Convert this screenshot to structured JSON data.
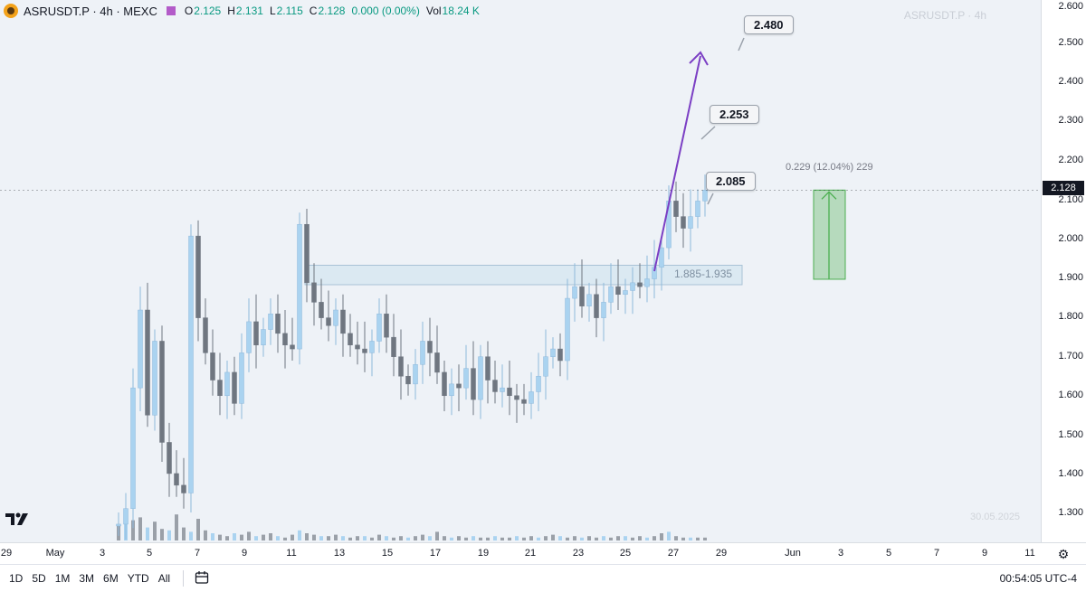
{
  "header": {
    "title": "ASRUSDT.P · 4h · MEXC",
    "ohlc": [
      {
        "key": "O",
        "value": "2.125"
      },
      {
        "key": "H",
        "value": "2.131"
      },
      {
        "key": "L",
        "value": "2.115"
      },
      {
        "key": "C",
        "value": "2.128"
      },
      {
        "key": "",
        "value": "0.000 (0.00%)"
      },
      {
        "key": "Vol",
        "value": "18.24 K"
      }
    ],
    "status_color": "#b35bc9"
  },
  "watermark": "ASRUSDT.P · 4h",
  "watermark_date": "30.05.2025",
  "logo": "TV",
  "current_price": "2.128",
  "price_axis": [
    "2.600",
    "2.500",
    "2.400",
    "2.300",
    "2.200",
    "2.100",
    "2.000",
    "1.900",
    "1.800",
    "1.700",
    "1.600",
    "1.500",
    "1.400",
    "1.300"
  ],
  "time_axis": [
    "29",
    "May",
    "3",
    "5",
    "7",
    "9",
    "11",
    "13",
    "15",
    "17",
    "19",
    "21",
    "23",
    "25",
    "27",
    "29",
    "Jun",
    "3",
    "5",
    "7",
    "9",
    "11"
  ],
  "annotations": {
    "callout_1": "2.480",
    "callout_2": "2.253",
    "callout_3": "2.085",
    "zone_label": "1.885-1.935",
    "measure_label": "0.229 (12.04%) 229"
  },
  "bottom_bar": {
    "ranges": [
      "1D",
      "5D",
      "1M",
      "3M",
      "6M",
      "YTD",
      "All"
    ],
    "calendar_icon": "calendar-icon",
    "clock": "00:54:05 UTC-4"
  },
  "colors": {
    "up": "#8fb9db",
    "up_fill": "#aad3f0",
    "down": "#6f7680",
    "arrow": "#7b3fc4",
    "measure": "#4caf50",
    "zone": "#cfe2ef"
  },
  "chart_data": {
    "type": "candlestick",
    "ylim": [
      1.25,
      2.6
    ],
    "x_start": "2025-05-02 00:00",
    "interval_hours": 4,
    "series": [
      {
        "close": 1.27
      },
      {
        "close": 1.31
      },
      {
        "close": 1.62
      },
      {
        "close": 1.82
      },
      {
        "close": 1.55
      },
      {
        "close": 1.74
      },
      {
        "close": 1.48
      },
      {
        "close": 1.4
      },
      {
        "close": 1.37
      },
      {
        "close": 1.35
      },
      {
        "close": 2.01
      },
      {
        "close": 1.8
      },
      {
        "close": 1.71
      },
      {
        "close": 1.64
      },
      {
        "close": 1.6
      },
      {
        "close": 1.66
      },
      {
        "close": 1.58
      },
      {
        "close": 1.71
      },
      {
        "close": 1.79
      },
      {
        "close": 1.73
      },
      {
        "close": 1.77
      },
      {
        "close": 1.81
      },
      {
        "close": 1.76
      },
      {
        "close": 1.73
      },
      {
        "close": 1.72
      },
      {
        "close": 2.04
      },
      {
        "close": 1.89
      },
      {
        "close": 1.84
      },
      {
        "close": 1.8
      },
      {
        "close": 1.78
      },
      {
        "close": 1.82
      },
      {
        "close": 1.76
      },
      {
        "close": 1.73
      },
      {
        "close": 1.72
      },
      {
        "close": 1.71
      },
      {
        "close": 1.74
      },
      {
        "close": 1.81
      },
      {
        "close": 1.75
      },
      {
        "close": 1.7
      },
      {
        "close": 1.65
      },
      {
        "close": 1.63
      },
      {
        "close": 1.68
      },
      {
        "close": 1.74
      },
      {
        "close": 1.71
      },
      {
        "close": 1.66
      },
      {
        "close": 1.6
      },
      {
        "close": 1.63
      },
      {
        "close": 1.62
      },
      {
        "close": 1.67
      },
      {
        "close": 1.59
      },
      {
        "close": 1.7
      },
      {
        "close": 1.64
      },
      {
        "close": 1.61
      },
      {
        "close": 1.62
      },
      {
        "close": 1.6
      },
      {
        "close": 1.59
      },
      {
        "close": 1.58
      },
      {
        "close": 1.61
      },
      {
        "close": 1.65
      },
      {
        "close": 1.7
      },
      {
        "close": 1.72
      },
      {
        "close": 1.69
      },
      {
        "close": 1.85
      },
      {
        "close": 1.88
      },
      {
        "close": 1.83
      },
      {
        "close": 1.86
      },
      {
        "close": 1.8
      },
      {
        "close": 1.84
      },
      {
        "close": 1.88
      },
      {
        "close": 1.86
      },
      {
        "close": 1.87
      },
      {
        "close": 1.89
      },
      {
        "close": 1.88
      },
      {
        "close": 1.9
      },
      {
        "close": 1.93
      },
      {
        "close": 1.98
      },
      {
        "close": 2.1
      },
      {
        "close": 2.06
      },
      {
        "close": 2.03
      },
      {
        "close": 2.06
      },
      {
        "close": 2.1
      },
      {
        "close": 2.128
      }
    ],
    "volume": [
      10,
      12,
      14,
      16,
      9,
      13,
      8,
      7,
      18,
      9,
      6,
      15,
      7,
      5,
      4,
      3,
      5,
      4,
      6,
      3,
      4,
      5,
      3,
      2,
      4,
      7,
      5,
      4,
      3,
      3,
      4,
      3,
      2,
      3,
      3,
      2,
      4,
      3,
      2,
      3,
      2,
      3,
      4,
      3,
      6,
      3,
      2,
      3,
      2,
      3,
      2,
      2,
      3,
      2,
      2,
      3,
      2,
      3,
      2,
      3,
      4,
      3,
      2,
      3,
      2,
      3,
      2,
      3,
      2,
      3,
      3,
      2,
      3,
      2,
      3,
      5,
      6,
      3,
      2,
      2,
      2,
      2
    ]
  }
}
